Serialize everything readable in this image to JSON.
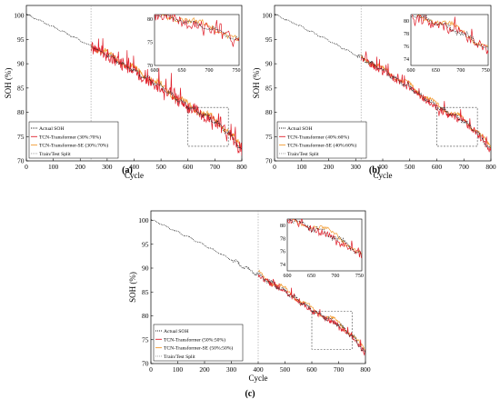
{
  "chart_data": [
    {
      "type": "line",
      "panel_label": "(a)",
      "xlabel": "Cycle",
      "ylabel": "SOH (%)",
      "xlim": [
        0,
        800
      ],
      "ylim": [
        70,
        102
      ],
      "xticks": [
        0,
        100,
        200,
        300,
        400,
        500,
        600,
        700,
        800
      ],
      "yticks": [
        70,
        75,
        80,
        85,
        90,
        95,
        100
      ],
      "split": 240,
      "legend_position": "bottom-left",
      "zoom_box": {
        "x": [
          600,
          750
        ],
        "y": [
          73,
          81
        ]
      },
      "inset": {
        "xlim": [
          600,
          755
        ],
        "ylim": [
          70,
          81
        ],
        "xticks": [
          600,
          650,
          700,
          750
        ],
        "yticks": [
          70,
          75,
          80
        ]
      },
      "series": [
        {
          "name": "Actual SOH",
          "color": "#222222",
          "style": "dotted"
        },
        {
          "name": "TCN-Transformer (30%:70%)",
          "color": "#e0202c",
          "style": "solid"
        },
        {
          "name": "TCN-Transformer-SE (30%:70%)",
          "color": "#f29a2e",
          "style": "solid"
        },
        {
          "name": "Train/Test Split",
          "color": "#999999",
          "style": "dotted"
        }
      ],
      "actual_points": [
        [
          0,
          100.2
        ],
        [
          100,
          97.6
        ],
        [
          200,
          94.8
        ],
        [
          240,
          93.6
        ],
        [
          300,
          91.8
        ],
        [
          400,
          88.6
        ],
        [
          500,
          85.2
        ],
        [
          600,
          81.2
        ],
        [
          700,
          78.2
        ],
        [
          750,
          75.8
        ],
        [
          800,
          72.2
        ]
      ]
    },
    {
      "type": "line",
      "panel_label": "(b)",
      "xlabel": "Cycle",
      "ylabel": "SOH (%)",
      "xlim": [
        0,
        800
      ],
      "ylim": [
        70,
        102
      ],
      "xticks": [
        0,
        100,
        200,
        300,
        400,
        500,
        600,
        700,
        800
      ],
      "yticks": [
        70,
        75,
        80,
        85,
        90,
        95,
        100
      ],
      "split": 320,
      "legend_position": "bottom-left",
      "zoom_box": {
        "x": [
          600,
          750
        ],
        "y": [
          73,
          81
        ]
      },
      "inset": {
        "xlim": [
          600,
          755
        ],
        "ylim": [
          73,
          81
        ],
        "xticks": [
          600,
          650,
          700,
          750
        ],
        "yticks": [
          74,
          76,
          78,
          80
        ]
      },
      "series": [
        {
          "name": "Actual SOH",
          "color": "#222222",
          "style": "dotted"
        },
        {
          "name": "TCN-Transformer (40%:60%)",
          "color": "#e0202c",
          "style": "solid"
        },
        {
          "name": "TCN-Transformer-SE (40%:60%)",
          "color": "#f29a2e",
          "style": "solid"
        },
        {
          "name": "Train/Test Split",
          "color": "#999999",
          "style": "dotted"
        }
      ],
      "actual_points": [
        [
          0,
          100.2
        ],
        [
          100,
          97.6
        ],
        [
          200,
          94.8
        ],
        [
          320,
          91.2
        ],
        [
          400,
          88.6
        ],
        [
          500,
          85.2
        ],
        [
          600,
          81.2
        ],
        [
          700,
          78.2
        ],
        [
          750,
          75.8
        ],
        [
          800,
          72.2
        ]
      ]
    },
    {
      "type": "line",
      "panel_label": "(c)",
      "xlabel": "Cycle",
      "ylabel": "SOH (%)",
      "xlim": [
        0,
        800
      ],
      "ylim": [
        70,
        102
      ],
      "xticks": [
        0,
        100,
        200,
        300,
        400,
        500,
        600,
        700,
        800
      ],
      "yticks": [
        70,
        75,
        80,
        85,
        90,
        95,
        100
      ],
      "split": 400,
      "legend_position": "bottom-left",
      "zoom_box": {
        "x": [
          600,
          750
        ],
        "y": [
          73,
          81
        ]
      },
      "inset": {
        "xlim": [
          600,
          755
        ],
        "ylim": [
          73,
          81
        ],
        "xticks": [
          600,
          650,
          700,
          750
        ],
        "yticks": [
          74,
          76,
          78,
          80
        ]
      },
      "series": [
        {
          "name": "Actual SOH",
          "color": "#222222",
          "style": "dotted"
        },
        {
          "name": "TCN-Transformer (50%:50%)",
          "color": "#e0202c",
          "style": "solid"
        },
        {
          "name": "TCN-Transformer-SE (50%:50%)",
          "color": "#f29a2e",
          "style": "solid"
        },
        {
          "name": "Train/Test Split",
          "color": "#999999",
          "style": "dotted"
        }
      ],
      "actual_points": [
        [
          0,
          100.2
        ],
        [
          100,
          97.6
        ],
        [
          200,
          94.8
        ],
        [
          300,
          91.8
        ],
        [
          400,
          88.6
        ],
        [
          500,
          85.2
        ],
        [
          600,
          81.2
        ],
        [
          700,
          78.2
        ],
        [
          750,
          75.8
        ],
        [
          800,
          72.2
        ]
      ]
    }
  ]
}
